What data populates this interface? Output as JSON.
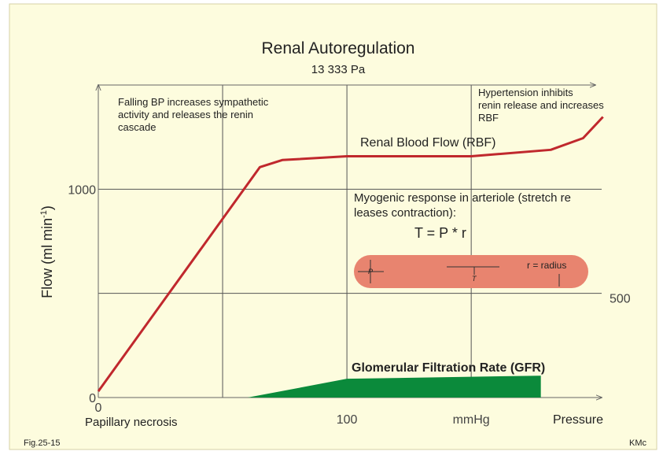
{
  "chart_data": {
    "type": "line",
    "title": "Renal Autoregulation",
    "subtitle": "13 333 Pa",
    "y_label": "Flow (ml min",
    "y_label_sup": "-1",
    "y_label_end": ")",
    "x_label": "Pressure",
    "xlim": [
      0,
      205
    ],
    "ylim": [
      0,
      1500
    ],
    "y2lim": [
      0,
      1500
    ],
    "xticks": [
      0,
      100,
      {
        "value": 150,
        "label": "mmHg"
      }
    ],
    "x_grid": [
      50,
      100,
      150
    ],
    "yticks": [
      0,
      1000
    ],
    "y2ticks": [
      500
    ],
    "grid": true,
    "series": [
      {
        "name": "Renal Blood Flow (RBF)",
        "color": "#c0282d",
        "type": "line",
        "x": [
          0,
          65,
          74,
          100,
          150,
          182,
          195,
          203
        ],
        "values": [
          30,
          1106,
          1140,
          1158,
          1158,
          1189,
          1245,
          1347
        ]
      },
      {
        "name": "Glomerular Filtration Rate (GFR)",
        "color": "#0b8a3b",
        "type": "area",
        "x": [
          60,
          100,
          178
        ],
        "values": [
          0,
          90,
          105
        ]
      }
    ],
    "annotations": {
      "falling_bp": [
        "Falling BP increases sympathetic",
        "activity and releases the renin",
        "cascade"
      ],
      "hypertension": [
        "Hypertension inhibits",
        "renin release and increases",
        "RBF"
      ],
      "myogenic": [
        "Myogenic response in arteriole (stretch re",
        "leases contraction):"
      ],
      "formula": "T =   P * r",
      "p": "P",
      "t": "T",
      "radius": "r = radius",
      "papillary": "Papillary necrosis"
    },
    "figure": "Fig.25-15",
    "credit": "KMc"
  }
}
